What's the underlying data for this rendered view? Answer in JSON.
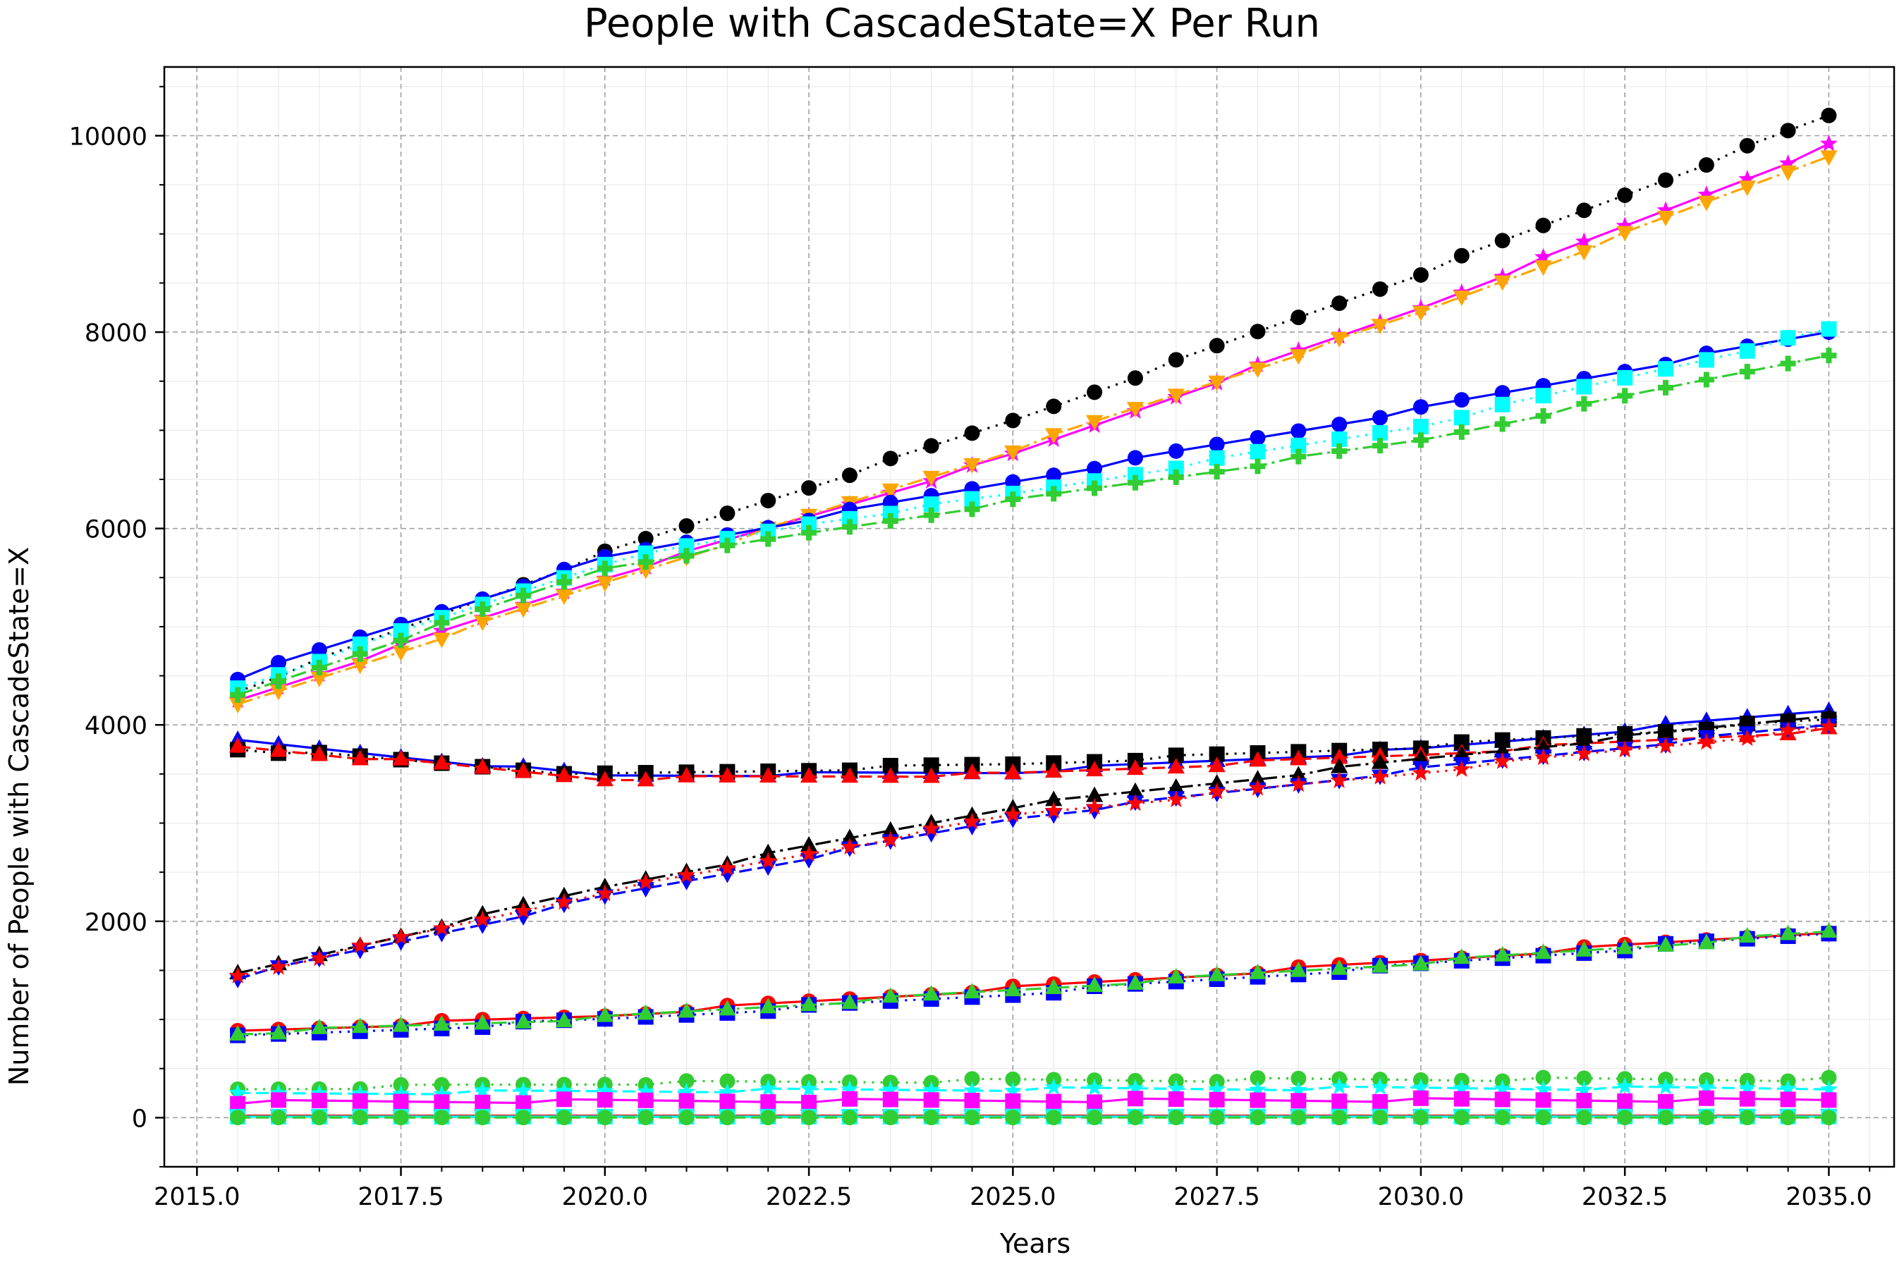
{
  "chart_data": {
    "type": "line",
    "title": "People with CascadeState=X Per Run",
    "xlabel": "Years",
    "ylabel": "Number of People with CascadeState=X",
    "xlim": [
      2014.6,
      2035.8
    ],
    "ylim": [
      -500,
      10700
    ],
    "xticks": [
      2015.0,
      2017.5,
      2020.0,
      2022.5,
      2025.0,
      2027.5,
      2030.0,
      2032.5,
      2035.0
    ],
    "xtick_labels": [
      "2015.0",
      "2017.5",
      "2020.0",
      "2022.5",
      "2025.0",
      "2027.5",
      "2030.0",
      "2032.5",
      "2035.0"
    ],
    "yticks": [
      0,
      2000,
      4000,
      6000,
      8000,
      10000
    ],
    "ytick_labels": [
      "0",
      "2000",
      "4000",
      "6000",
      "8000",
      "10000"
    ],
    "grid": true,
    "x_start": 2015.5,
    "x_step": 0.5,
    "series": [
      {
        "color": "#000000",
        "dash": "3,9",
        "marker": "circle",
        "anchors": [
          [
            2015.5,
            4350
          ],
          [
            2020.0,
            5750
          ],
          [
            2025.0,
            7100
          ],
          [
            2030.0,
            8600
          ],
          [
            2035.0,
            10200
          ]
        ]
      },
      {
        "color": "#ff00ff",
        "dash": "",
        "marker": "star",
        "anchors": [
          [
            2015.5,
            4250
          ],
          [
            2020.0,
            5500
          ],
          [
            2025.0,
            6750
          ],
          [
            2030.0,
            8250
          ],
          [
            2035.0,
            9900
          ]
        ]
      },
      {
        "color": "#ffa500",
        "dash": "22,7,4,7",
        "marker": "tri-down",
        "anchors": [
          [
            2015.5,
            4200
          ],
          [
            2020.0,
            5450
          ],
          [
            2025.0,
            6800
          ],
          [
            2030.0,
            8200
          ],
          [
            2035.0,
            9800
          ]
        ]
      },
      {
        "color": "#0000ff",
        "dash": "",
        "marker": "circle",
        "anchors": [
          [
            2015.5,
            4480
          ],
          [
            2020.0,
            5700
          ],
          [
            2022.5,
            6100
          ],
          [
            2025.0,
            6480
          ],
          [
            2030.0,
            7220
          ],
          [
            2035.0,
            8000
          ]
        ]
      },
      {
        "color": "#00ffff",
        "dash": "3,9",
        "marker": "square",
        "anchors": [
          [
            2015.5,
            4380
          ],
          [
            2020.0,
            5650
          ],
          [
            2022.5,
            6050
          ],
          [
            2025.0,
            6350
          ],
          [
            2030.0,
            7050
          ],
          [
            2035.0,
            8020
          ]
        ]
      },
      {
        "color": "#32cd32",
        "dash": "22,7,4,7",
        "marker": "plus",
        "anchors": [
          [
            2015.5,
            4300
          ],
          [
            2020.0,
            5600
          ],
          [
            2022.5,
            5950
          ],
          [
            2025.0,
            6280
          ],
          [
            2030.0,
            6900
          ],
          [
            2035.0,
            7780
          ]
        ]
      },
      {
        "color": "#0000ff",
        "dash": "",
        "marker": "tri-up",
        "anchors": [
          [
            2015.5,
            3830
          ],
          [
            2020.0,
            3480
          ],
          [
            2025.0,
            3520
          ],
          [
            2030.0,
            3750
          ],
          [
            2035.0,
            4150
          ]
        ]
      },
      {
        "color": "#000000",
        "dash": "3,9",
        "marker": "square",
        "anchors": [
          [
            2015.5,
            3760
          ],
          [
            2020.0,
            3490
          ],
          [
            2025.0,
            3600
          ],
          [
            2030.0,
            3780
          ],
          [
            2035.0,
            4050
          ]
        ]
      },
      {
        "color": "#ff0000",
        "dash": "18,8",
        "marker": "tri-up",
        "anchors": [
          [
            2015.5,
            3780
          ],
          [
            2020.0,
            3450
          ],
          [
            2025.0,
            3500
          ],
          [
            2030.0,
            3700
          ],
          [
            2035.0,
            3950
          ]
        ]
      },
      {
        "color": "#000000",
        "dash": "22,7,4,7",
        "marker": "tri-up",
        "anchors": [
          [
            2015.5,
            1460
          ],
          [
            2020.0,
            2350
          ],
          [
            2025.0,
            3170
          ],
          [
            2030.0,
            3650
          ],
          [
            2035.0,
            4100
          ]
        ]
      },
      {
        "color": "#0000ff",
        "dash": "18,8",
        "marker": "tri-down",
        "anchors": [
          [
            2015.5,
            1430
          ],
          [
            2020.0,
            2250
          ],
          [
            2025.0,
            3050
          ],
          [
            2030.0,
            3550
          ],
          [
            2035.0,
            4000
          ]
        ]
      },
      {
        "color": "#ff0000",
        "dash": "3,9",
        "marker": "star",
        "anchors": [
          [
            2015.5,
            1450
          ],
          [
            2020.0,
            2300
          ],
          [
            2025.0,
            3080
          ],
          [
            2030.0,
            3520
          ],
          [
            2035.0,
            3970
          ]
        ]
      },
      {
        "color": "#ff0000",
        "dash": "",
        "marker": "circle",
        "anchors": [
          [
            2015.5,
            880
          ],
          [
            2020.0,
            1040
          ],
          [
            2025.0,
            1320
          ],
          [
            2030.0,
            1600
          ],
          [
            2035.0,
            1900
          ]
        ]
      },
      {
        "color": "#0000ff",
        "dash": "3,9",
        "marker": "square",
        "anchors": [
          [
            2015.5,
            820
          ],
          [
            2020.0,
            1000
          ],
          [
            2025.0,
            1260
          ],
          [
            2030.0,
            1560
          ],
          [
            2035.0,
            1880
          ]
        ]
      },
      {
        "color": "#32cd32",
        "dash": "22,7,4,7",
        "marker": "tri-up",
        "anchors": [
          [
            2015.5,
            860
          ],
          [
            2020.0,
            1020
          ],
          [
            2025.0,
            1300
          ],
          [
            2030.0,
            1580
          ],
          [
            2035.0,
            1890
          ]
        ]
      },
      {
        "color": "#32cd32",
        "dash": "3,9",
        "marker": "circle",
        "anchors": [
          [
            2015.5,
            290
          ],
          [
            2020.0,
            350
          ],
          [
            2025.0,
            380
          ],
          [
            2030.0,
            390
          ],
          [
            2035.0,
            390
          ]
        ]
      },
      {
        "color": "#00ffff",
        "dash": "18,8",
        "marker": "star",
        "anchors": [
          [
            2015.5,
            240
          ],
          [
            2020.0,
            270
          ],
          [
            2025.0,
            290
          ],
          [
            2030.0,
            300
          ],
          [
            2035.0,
            300
          ]
        ]
      },
      {
        "color": "#ff00ff",
        "dash": "",
        "marker": "square",
        "anchors": [
          [
            2015.5,
            160
          ],
          [
            2020.0,
            170
          ],
          [
            2025.0,
            175
          ],
          [
            2030.0,
            180
          ],
          [
            2035.0,
            180
          ]
        ]
      },
      {
        "color": "#ff0000",
        "dash": "",
        "marker": "tri-down",
        "anchors": [
          [
            2015.5,
            20
          ],
          [
            2035.0,
            20
          ]
        ]
      },
      {
        "color": "#ffa500",
        "dash": "3,9",
        "marker": "plus",
        "anchors": [
          [
            2015.5,
            5
          ],
          [
            2035.0,
            5
          ]
        ]
      },
      {
        "color": "#00ffff",
        "dash": "",
        "marker": "square",
        "anchors": [
          [
            2015.5,
            10
          ],
          [
            2035.0,
            12
          ]
        ]
      },
      {
        "color": "#32cd32",
        "dash": "18,8",
        "marker": "circle",
        "anchors": [
          [
            2015.5,
            2
          ],
          [
            2035.0,
            2
          ]
        ]
      }
    ]
  }
}
